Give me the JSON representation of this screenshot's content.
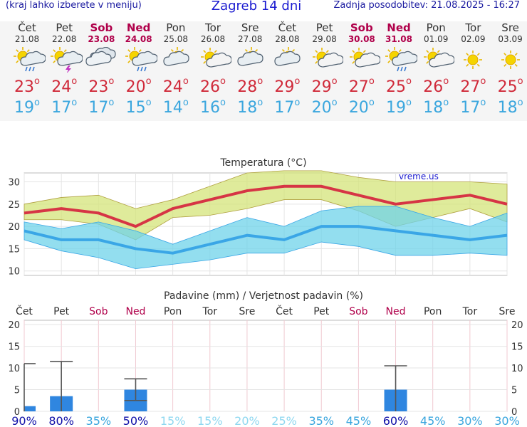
{
  "header": {
    "left": "(kraj lahko izberete v meniju)",
    "title": "Zagreb 14 dni",
    "right": "Zadnja posodobitev: 21.08.2025 - 16:27"
  },
  "days": [
    {
      "name": "Čet",
      "date": "21.08",
      "weekend": false,
      "icon": "rain-sun-icon",
      "max": "23",
      "min": "19"
    },
    {
      "name": "Pet",
      "date": "22.08",
      "weekend": false,
      "icon": "thunderstorm-icon",
      "max": "24",
      "min": "17"
    },
    {
      "name": "Sob",
      "date": "23.08",
      "weekend": true,
      "icon": "cloudy-icon",
      "max": "23",
      "min": "17"
    },
    {
      "name": "Ned",
      "date": "24.08",
      "weekend": true,
      "icon": "rain-sun-icon",
      "max": "20",
      "min": "15"
    },
    {
      "name": "Pon",
      "date": "25.08",
      "weekend": false,
      "icon": "partly-cloudy-icon",
      "max": "24",
      "min": "14"
    },
    {
      "name": "Tor",
      "date": "26.08",
      "weekend": false,
      "icon": "mostly-sunny-icon",
      "max": "26",
      "min": "16"
    },
    {
      "name": "Sre",
      "date": "27.08",
      "weekend": false,
      "icon": "partly-cloudy-icon",
      "max": "28",
      "min": "18"
    },
    {
      "name": "Čet",
      "date": "28.08",
      "weekend": false,
      "icon": "partly-cloudy-icon",
      "max": "29",
      "min": "17"
    },
    {
      "name": "Pet",
      "date": "29.08",
      "weekend": false,
      "icon": "mostly-sunny-icon",
      "max": "29",
      "min": "20"
    },
    {
      "name": "Sob",
      "date": "30.08",
      "weekend": true,
      "icon": "mostly-sunny-icon",
      "max": "27",
      "min": "20"
    },
    {
      "name": "Ned",
      "date": "31.08",
      "weekend": true,
      "icon": "rain-sun-icon",
      "max": "25",
      "min": "19"
    },
    {
      "name": "Pon",
      "date": "01.09",
      "weekend": false,
      "icon": "mostly-sunny-icon",
      "max": "26",
      "min": "18"
    },
    {
      "name": "Tor",
      "date": "02.09",
      "weekend": false,
      "icon": "sunny-icon",
      "max": "27",
      "min": "17"
    },
    {
      "name": "Sre",
      "date": "03.09",
      "weekend": false,
      "icon": "sunny-icon",
      "max": "25",
      "min": "18"
    }
  ],
  "chart_data": [
    {
      "type": "line",
      "title": "Temperatura (°C)",
      "watermark": "vreme.us",
      "ylim": [
        9,
        32
      ],
      "yticks": [
        10,
        15,
        20,
        25,
        30
      ],
      "grid": true,
      "categories": [
        "Čet",
        "Pet",
        "Sob",
        "Ned",
        "Pon",
        "Tor",
        "Sre",
        "Čet",
        "Pet",
        "Sob",
        "Ned",
        "Pon",
        "Tor",
        "Sre"
      ],
      "series": [
        {
          "key": "max",
          "color": "#d63545",
          "values": [
            23,
            24,
            23,
            20,
            24,
            26,
            28,
            29,
            29,
            27,
            25,
            26,
            27,
            25
          ]
        },
        {
          "key": "max_high",
          "color": "#c8d86a",
          "values": [
            25,
            26.5,
            27,
            24,
            26,
            29,
            32,
            32.5,
            32.5,
            31,
            30,
            30,
            30,
            29.5
          ]
        },
        {
          "key": "max_low",
          "color": "#c8d86a",
          "values": [
            21.5,
            21.5,
            20.5,
            17,
            22,
            22.5,
            24,
            26,
            26,
            23.5,
            20,
            22,
            24,
            21
          ]
        },
        {
          "key": "min",
          "color": "#3aa6e6",
          "values": [
            19,
            17,
            17,
            15,
            14,
            16,
            18,
            17,
            20,
            20,
            19,
            18,
            17,
            18
          ]
        },
        {
          "key": "min_high",
          "color": "#4fc7e8",
          "values": [
            21,
            19.5,
            21,
            19,
            16,
            19,
            22,
            20,
            23.5,
            24.5,
            24.5,
            22,
            20,
            23
          ]
        },
        {
          "key": "min_low",
          "color": "#4fc7e8",
          "values": [
            17,
            14.5,
            13,
            10.5,
            11.5,
            12.5,
            14,
            14,
            16.5,
            15.5,
            13.5,
            13.5,
            14,
            13.5
          ]
        }
      ]
    },
    {
      "type": "bar",
      "title": "Padavine (mm) / Verjetnost padavin (%)",
      "ylim": [
        0,
        21
      ],
      "yticks": [
        0,
        5,
        10,
        15,
        20
      ],
      "grid": true,
      "categories": [
        "Čet",
        "Pet",
        "Sob",
        "Ned",
        "Pon",
        "Tor",
        "Sre",
        "Čet",
        "Pet",
        "Sob",
        "Ned",
        "Pon",
        "Tor",
        "Sre"
      ],
      "category_weekend": [
        false,
        false,
        true,
        true,
        false,
        false,
        false,
        false,
        false,
        true,
        true,
        false,
        false,
        false
      ],
      "values": [
        1.2,
        3.5,
        0,
        5,
        0,
        0,
        0,
        0,
        0,
        0,
        5,
        0,
        0,
        0
      ],
      "error_high": [
        11,
        11.5,
        0,
        7.5,
        0,
        0,
        0,
        0,
        0,
        0,
        10.5,
        0,
        0,
        0
      ],
      "error_low": [
        0,
        0,
        0,
        2.5,
        0,
        0,
        0,
        0,
        0,
        0,
        0,
        0,
        0,
        0
      ],
      "probability": [
        "90%",
        "80%",
        "35%",
        "50%",
        "15%",
        "15%",
        "20%",
        "25%",
        "35%",
        "45%",
        "60%",
        "45%",
        "30%",
        "30%"
      ],
      "probability_values": [
        90,
        80,
        35,
        50,
        15,
        15,
        20,
        25,
        35,
        45,
        60,
        45,
        30,
        30
      ],
      "bar_color": "#2f86e0"
    }
  ]
}
